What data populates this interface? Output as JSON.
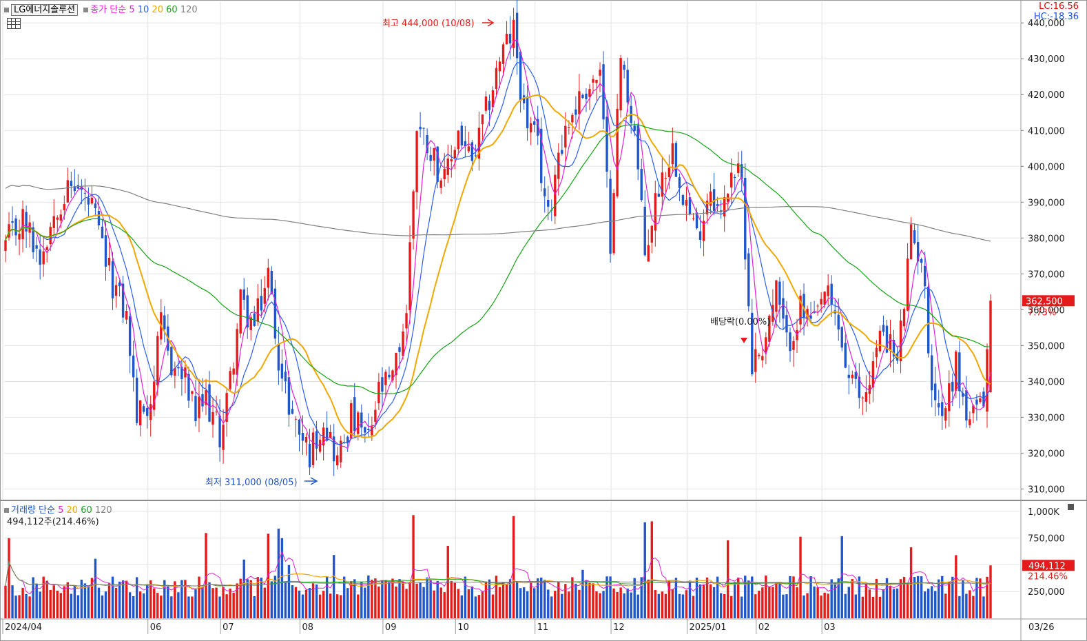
{
  "header": {
    "stock_name": "LG에너지솔루션",
    "price_ma_title": "종가 단순",
    "ma_periods": [
      "5",
      "10",
      "20",
      "60",
      "120"
    ],
    "lc": "LC:16.56",
    "hc": "HC:-18.36",
    "volume_title": "거래량 단순",
    "volume_ma_periods": [
      "5",
      "20",
      "60",
      "120"
    ],
    "volume_info": "494,112주(214.46%)"
  },
  "colors": {
    "up": "#e41b1b",
    "down": "#1f56c9",
    "ma5": "#e01fd8",
    "ma10": "#2a5cf0",
    "ma20": "#f0a800",
    "ma60": "#13a313",
    "ma120": "#808080"
  },
  "annotations": {
    "high": "최고 444,000 (10/08)",
    "low": "최저 311,000 (08/05)",
    "dividend": "배당락(0.00%)"
  },
  "chart_data": {
    "type": "candlestick",
    "price_axis": {
      "ylim": [
        307000,
        446000
      ],
      "ticks": [
        "310,000",
        "320,000",
        "330,000",
        "340,000",
        "350,000",
        "360,000",
        "370,000",
        "380,000",
        "390,000",
        "400,000",
        "410,000",
        "420,000",
        "430,000",
        "440,000"
      ],
      "tick_values": [
        310000,
        320000,
        330000,
        340000,
        350000,
        360000,
        370000,
        380000,
        390000,
        400000,
        410000,
        420000,
        430000,
        440000
      ]
    },
    "current_price": {
      "label": "362,500",
      "change": "7.73%",
      "value": 362500
    },
    "date_axis": [
      "2024/04",
      "06",
      "07",
      "08",
      "09",
      "10",
      "11",
      "12",
      "2025/01",
      "02",
      "03",
      "03/26"
    ],
    "price_anchors": [
      [
        0,
        378000
      ],
      [
        5,
        385000
      ],
      [
        10,
        375000
      ],
      [
        15,
        390000
      ],
      [
        20,
        395000
      ],
      [
        25,
        388000
      ],
      [
        30,
        370000
      ],
      [
        35,
        358000
      ],
      [
        38,
        330000
      ],
      [
        42,
        335000
      ],
      [
        45,
        355000
      ],
      [
        48,
        345000
      ],
      [
        52,
        340000
      ],
      [
        55,
        330000
      ],
      [
        58,
        335000
      ],
      [
        62,
        325000
      ],
      [
        65,
        340000
      ],
      [
        68,
        362000
      ],
      [
        72,
        355000
      ],
      [
        76,
        370000
      ],
      [
        80,
        340000
      ],
      [
        84,
        328000
      ],
      [
        88,
        320000
      ],
      [
        92,
        330000
      ],
      [
        96,
        318000
      ],
      [
        100,
        330000
      ],
      [
        105,
        323000
      ],
      [
        108,
        337000
      ],
      [
        112,
        340000
      ],
      [
        116,
        360000
      ],
      [
        119,
        412000
      ],
      [
        123,
        405000
      ],
      [
        127,
        395000
      ],
      [
        131,
        410000
      ],
      [
        135,
        400000
      ],
      [
        139,
        415000
      ],
      [
        143,
        430000
      ],
      [
        147,
        438000
      ],
      [
        150,
        415000
      ],
      [
        154,
        405000
      ],
      [
        157,
        385000
      ],
      [
        160,
        405000
      ],
      [
        164,
        415000
      ],
      [
        168,
        422000
      ],
      [
        172,
        425000
      ],
      [
        175,
        380000
      ],
      [
        178,
        430000
      ],
      [
        182,
        410000
      ],
      [
        185,
        375000
      ],
      [
        189,
        395000
      ],
      [
        193,
        405000
      ],
      [
        197,
        390000
      ],
      [
        200,
        380000
      ],
      [
        204,
        395000
      ],
      [
        207,
        385000
      ],
      [
        210,
        400000
      ],
      [
        213,
        395000
      ],
      [
        216,
        345000
      ],
      [
        219,
        350000
      ],
      [
        223,
        365000
      ],
      [
        226,
        350000
      ],
      [
        230,
        360000
      ],
      [
        234,
        355000
      ],
      [
        237,
        365000
      ],
      [
        241,
        355000
      ],
      [
        244,
        340000
      ],
      [
        248,
        335000
      ],
      [
        251,
        345000
      ],
      [
        254,
        355000
      ],
      [
        258,
        345000
      ],
      [
        262,
        380000
      ],
      [
        265,
        375000
      ],
      [
        268,
        340000
      ],
      [
        271,
        330000
      ],
      [
        275,
        345000
      ],
      [
        278,
        330000
      ],
      [
        281,
        330000
      ],
      [
        283,
        335000
      ],
      [
        285,
        362500
      ]
    ],
    "volume_axis": {
      "ylim": [
        0,
        1050000
      ],
      "ticks": [
        "250,000",
        "500,000",
        "750,000",
        "1,000K"
      ],
      "tick_values": [
        250000,
        500000,
        750000,
        1000000
      ]
    },
    "current_volume": {
      "label": "494,112",
      "change": "214.46%",
      "value": 494112
    }
  }
}
